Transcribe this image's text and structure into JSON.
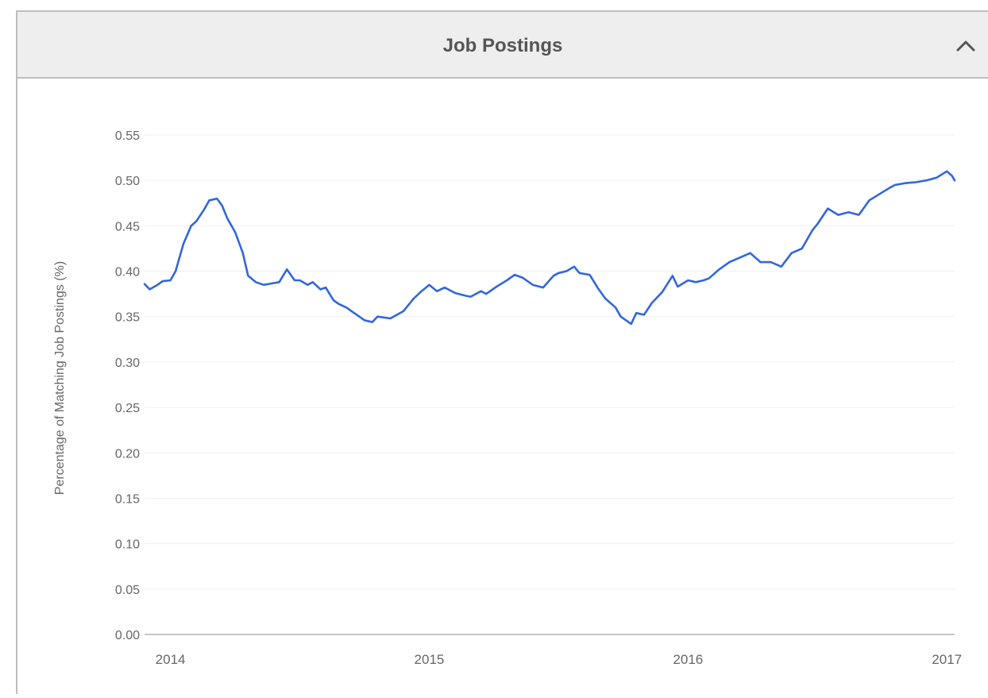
{
  "header": {
    "title": "Job Postings",
    "collapse_icon": "chevron-up-icon"
  },
  "colors": {
    "line": "#3366dd",
    "grid": "#f0f0f0",
    "axis": "#c6c6c6",
    "tick_text": "#666666",
    "header_bg": "#eeeeee"
  },
  "chart_data": {
    "type": "line",
    "title": "",
    "xlabel": "",
    "ylabel": "Percentage of Matching Job Postings (%)",
    "ylim": [
      0,
      0.55
    ],
    "yticks": [
      "0.00",
      "0.05",
      "0.10",
      "0.15",
      "0.20",
      "0.25",
      "0.30",
      "0.35",
      "0.40",
      "0.45",
      "0.50",
      "0.55"
    ],
    "xlim": [
      2013.9,
      2017.03
    ],
    "xticks": [
      "2014",
      "2015",
      "2016",
      "2017"
    ],
    "grid": true,
    "legend": "none",
    "series": [
      {
        "x": [
          2013.9,
          2013.92,
          2013.95,
          2013.97,
          2014.0,
          2014.02,
          2014.05,
          2014.08,
          2014.1,
          2014.13,
          2014.15,
          2014.18,
          2014.2,
          2014.22,
          2014.25,
          2014.28,
          2014.3,
          2014.33,
          2014.36,
          2014.38,
          2014.42,
          2014.45,
          2014.48,
          2014.5,
          2014.53,
          2014.55,
          2014.58,
          2014.6,
          2014.63,
          2014.65,
          2014.68,
          2014.7,
          2014.72,
          2014.75,
          2014.78,
          2014.8,
          2014.85,
          2014.9,
          2014.94,
          2014.97,
          2015.0,
          2015.03,
          2015.06,
          2015.1,
          2015.14,
          2015.16,
          2015.2,
          2015.22,
          2015.26,
          2015.3,
          2015.33,
          2015.36,
          2015.4,
          2015.44,
          2015.48,
          2015.5,
          2015.53,
          2015.56,
          2015.58,
          2015.62,
          2015.65,
          2015.68,
          2015.72,
          2015.74,
          2015.78,
          2015.8,
          2015.83,
          2015.86,
          2015.9,
          2015.94,
          2015.96,
          2016.0,
          2016.03,
          2016.06,
          2016.08,
          2016.12,
          2016.16,
          2016.2,
          2016.24,
          2016.28,
          2016.32,
          2016.36,
          2016.4,
          2016.44,
          2016.48,
          2016.5,
          2016.54,
          2016.58,
          2016.62,
          2016.66,
          2016.68,
          2016.7,
          2016.74,
          2016.78,
          2016.8,
          2016.84,
          2016.88,
          2016.92,
          2016.96,
          2017.0,
          2017.02,
          2017.03
        ],
        "y": [
          0.386,
          0.38,
          0.385,
          0.389,
          0.39,
          0.4,
          0.43,
          0.45,
          0.455,
          0.468,
          0.478,
          0.48,
          0.472,
          0.458,
          0.443,
          0.42,
          0.395,
          0.388,
          0.385,
          0.386,
          0.388,
          0.402,
          0.39,
          0.39,
          0.385,
          0.388,
          0.38,
          0.382,
          0.368,
          0.364,
          0.36,
          0.356,
          0.352,
          0.346,
          0.344,
          0.35,
          0.348,
          0.356,
          0.37,
          0.378,
          0.385,
          0.378,
          0.382,
          0.376,
          0.373,
          0.372,
          0.378,
          0.375,
          0.383,
          0.39,
          0.396,
          0.393,
          0.385,
          0.382,
          0.395,
          0.398,
          0.4,
          0.405,
          0.398,
          0.396,
          0.382,
          0.37,
          0.36,
          0.35,
          0.342,
          0.354,
          0.352,
          0.365,
          0.377,
          0.395,
          0.383,
          0.39,
          0.388,
          0.39,
          0.392,
          0.402,
          0.41,
          0.415,
          0.42,
          0.41,
          0.41,
          0.405,
          0.42,
          0.425,
          0.445,
          0.452,
          0.469,
          0.462,
          0.465,
          0.462,
          0.47,
          0.478,
          0.485,
          0.492,
          0.495,
          0.497,
          0.498,
          0.5,
          0.503,
          0.51,
          0.505,
          0.5
        ]
      }
    ]
  }
}
